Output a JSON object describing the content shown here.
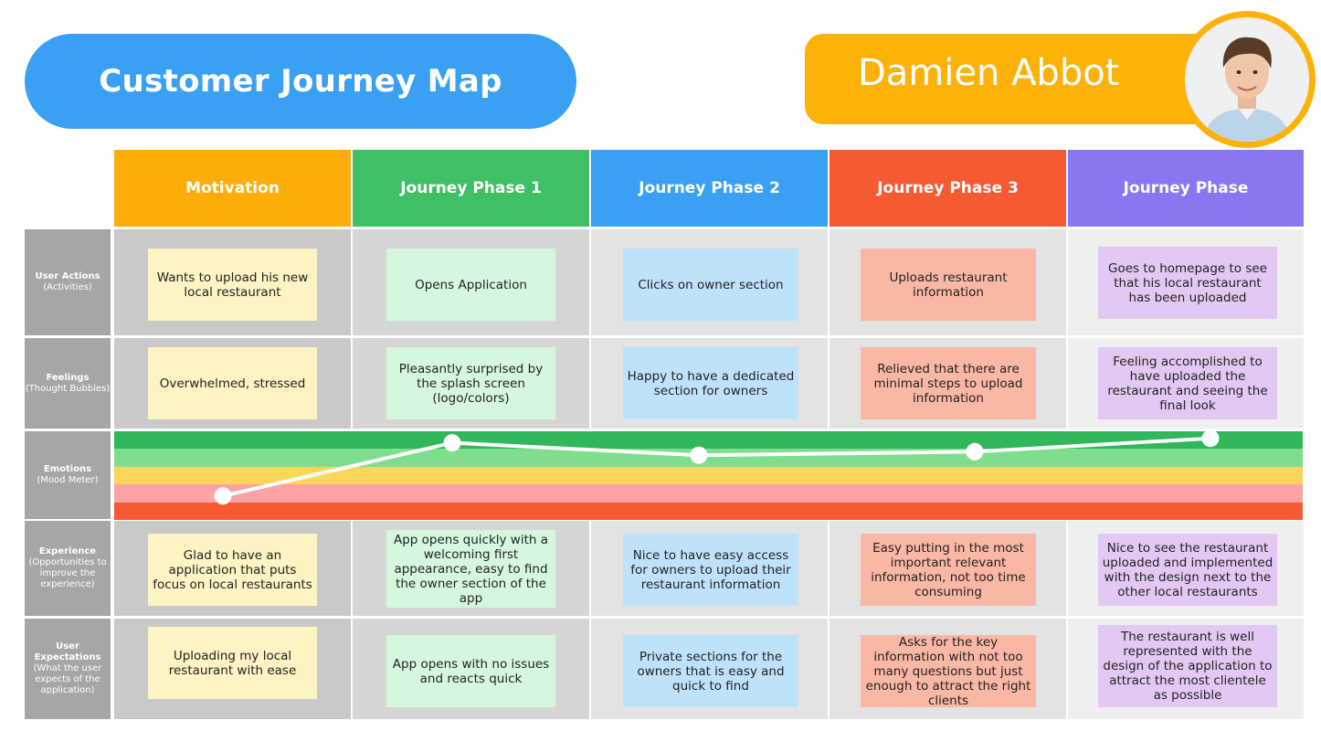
{
  "header": {
    "title": "Customer Journey Map",
    "persona_name": "Damien Abbot",
    "avatar_icon": "person-portrait-icon"
  },
  "colors": {
    "title_blue": "#3aa0f3",
    "persona_orange": "#fdb20a",
    "motivation": "#fcad0a",
    "phase1": "#3fc064",
    "phase2": "#3aa0f3",
    "phase3": "#f65a32",
    "phase4": "#8b76f1",
    "label_gray": "#a6a6a6",
    "mood_bands": [
      "#2fb75a",
      "#7ede8d",
      "#fcd65b",
      "#fba2a4",
      "#f65a32"
    ]
  },
  "columns": [
    {
      "label": "Motivation"
    },
    {
      "label": "Journey Phase 1"
    },
    {
      "label": "Journey Phase 2"
    },
    {
      "label": "Journey Phase 3"
    },
    {
      "label": "Journey Phase"
    }
  ],
  "rows": [
    {
      "title": "User Actions",
      "sub": "(Activities)",
      "cells": [
        "Wants to upload his new local restaurant",
        "Opens Application",
        "Clicks on owner section",
        "Uploads restaurant information",
        "Goes to homepage to see that his local restaurant has been uploaded"
      ]
    },
    {
      "title": "Feelings",
      "sub": "(Thought Bubbles)",
      "cells": [
        "Overwhelmed, stressed",
        "Pleasantly surprised by the splash screen (logo/colors)",
        "Happy to have a dedicated section for owners",
        "Relieved that there are minimal steps to upload information",
        "Feeling accomplished to have uploaded the restaurant and seeing the final look"
      ]
    },
    {
      "title": "Emotions",
      "sub": "(Mood Meter)"
    },
    {
      "title": "Experience",
      "sub": "(Opportunities to improve the experience)",
      "cells": [
        "Glad to have an application that puts focus on local restaurants",
        "App opens quickly with a welcoming first appearance, easy to find the owner section of the app",
        "Nice to have easy access for owners to upload their restaurant information",
        "Easy putting in the most important relevant information, not too time consuming",
        "Nice to see the restaurant uploaded and implemented with the design next to the other local restaurants"
      ]
    },
    {
      "title": "User Expectations",
      "sub": "(What the user expects of the application)",
      "cells": [
        "Uploading my local restaurant with ease",
        "App opens with no issues and reacts quick",
        "Private sections for the owners that is easy and quick to find",
        "Asks for the key information with not too many questions but just enough to attract the right clients",
        "The restaurant is well represented with the design of the application to attract the most clientele as possible"
      ]
    }
  ],
  "mood": {
    "scale_levels": 5,
    "values": [
      1.35,
      4.35,
      3.65,
      3.85,
      4.6
    ]
  }
}
